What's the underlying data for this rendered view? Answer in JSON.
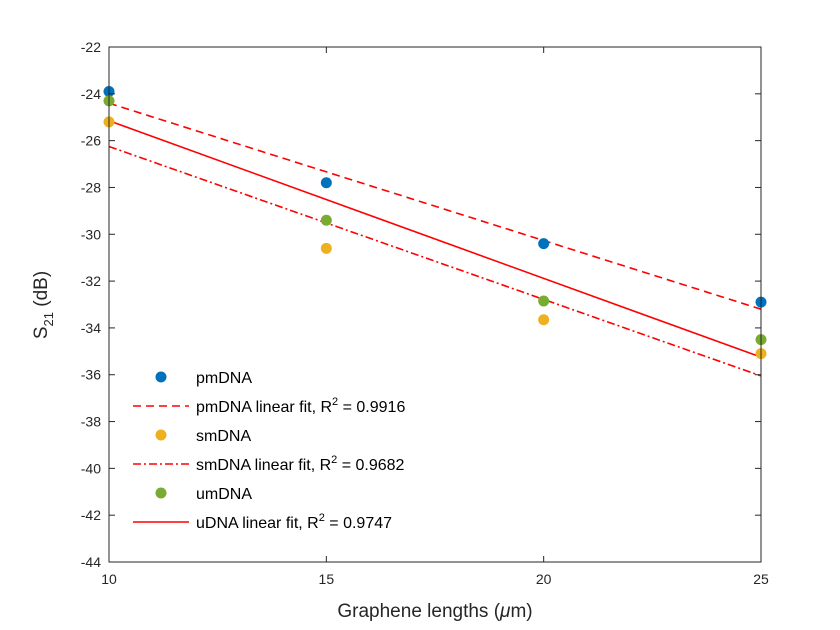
{
  "chart_data": {
    "type": "scatter",
    "xlabel_prefix": "Graphene lengths (",
    "xlabel_symbol": "μ",
    "xlabel_suffix": "m)",
    "ylabel_main": "S",
    "ylabel_sub": "21",
    "ylabel_unit": " (dB)",
    "xlim": [
      10,
      25
    ],
    "ylim": [
      -44,
      -22
    ],
    "xticks": [
      10,
      15,
      20,
      25
    ],
    "yticks": [
      -44,
      -42,
      -40,
      -38,
      -36,
      -34,
      -32,
      -30,
      -28,
      -26,
      -24,
      -22
    ],
    "grid": false,
    "legend_position": "bottom-left",
    "x": [
      10,
      15,
      20,
      25
    ],
    "series": [
      {
        "name": "pmDNA",
        "kind": "points",
        "color": "#0072BD",
        "values": [
          -23.9,
          -27.8,
          -30.4,
          -32.9
        ]
      },
      {
        "name_prefix": "pmDNA linear fit, R",
        "r2": "0.9916",
        "kind": "fit",
        "dash": "dashed",
        "color": "#FF0000",
        "endpoints": [
          -24.4,
          -33.2
        ]
      },
      {
        "name": "smDNA",
        "kind": "points",
        "color": "#EDB120",
        "values": [
          -25.2,
          -30.6,
          -33.65,
          -35.1
        ]
      },
      {
        "name_prefix": "smDNA linear fit, R",
        "r2": "0.9682",
        "kind": "fit",
        "dash": "dashdot",
        "color": "#FF0000",
        "endpoints": [
          -26.25,
          -36.05
        ]
      },
      {
        "name": "umDNA",
        "kind": "points",
        "color": "#77AC30",
        "values": [
          -24.3,
          -29.4,
          -32.85,
          -34.5
        ]
      },
      {
        "name_prefix": "uDNA linear fit, R",
        "r2": "0.9747",
        "kind": "fit",
        "dash": "solid",
        "color": "#FF0000",
        "endpoints": [
          -25.15,
          -35.25
        ]
      }
    ]
  }
}
